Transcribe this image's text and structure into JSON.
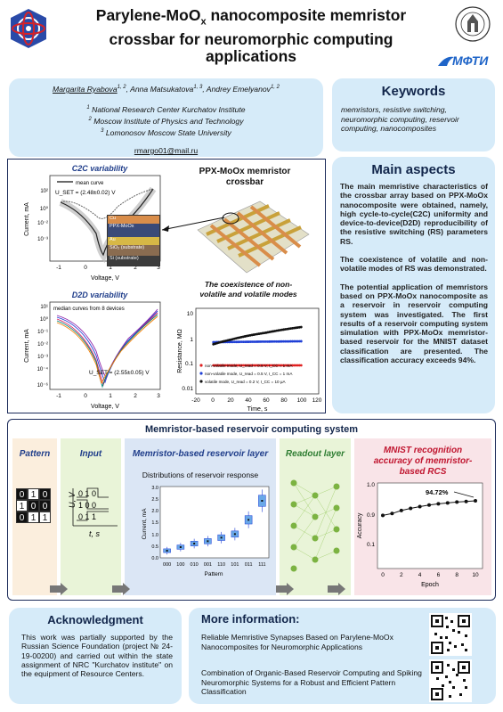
{
  "header": {
    "title_l1": "Parylene-MoO",
    "title_sub": "x",
    "title_l1b": " nanocomposite memristor",
    "title_l2": "crossbar for neuromorphic computing",
    "title_l3": "applications",
    "mipt_logo": "МФТИ"
  },
  "authors": {
    "a1": "Margarita Ryabova",
    "a1_sup": "1, 2",
    "a2": "Anna Matsukatova",
    "a2_sup": "1, 3",
    "a3": "Andrey Emelyanov",
    "a3_sup": "1, 2",
    "aff1": "National Research Center Kurchatov Institute",
    "aff1_n": "1",
    "aff2": "Moscow Institute of Physics and Technology",
    "aff2_n": "2",
    "aff3": "Lomonosov Moscow State University",
    "aff3_n": "3",
    "email": "rmargo01@mail.ru"
  },
  "keywords": {
    "title": "Keywords",
    "text": "memristors, resistive switching, neuromorphic computing, reservoir computing, nanocomposites"
  },
  "main_aspects": {
    "title": "Main aspects",
    "p1": "The main memristive characteristics of the crossbar array based on PPX-MoOx nanocomposite were obtained, namely, high cycle-to-cycle(C2C) uniformity and device-to-device(D2D) reproducibility of the resistive switching (RS) parameters RS.",
    "p2": "The coexistence of volatile and non-volatile modes of RS was demonstrated.",
    "p3": "The potential application of memristors based on PPX-MoOx nanocomposite as a reservoir in reservoir computing system was investigated. The first results of a reservoir computing system simulation with PPX-MoOx memristor-based reservoir for the MNIST dataset classification are presented. The classification accuracy exceeds 94%."
  },
  "figures": {
    "c2c_title": "C2C variability",
    "c2c_legend": "mean curve",
    "c2c_vset": "U_SET = (2.48±0.02) V",
    "d2d_title": "D2D variability",
    "d2d_legend": "median curves from 8 devices",
    "d2d_vset": "U_SET = (2.55±0.05) V",
    "ylabel_current": "Current, mA",
    "xlabel_voltage": "Voltage, V",
    "x_ticks": [
      "-1",
      "0",
      "1",
      "2",
      "3"
    ],
    "c2c_y_ticks": [
      "10²",
      "10¹",
      "10⁰",
      "10⁻¹",
      "10⁻²",
      "10⁻³",
      "10⁻⁴"
    ],
    "d2d_y_ticks": [
      "10¹",
      "10⁰",
      "10⁻¹",
      "10⁻²",
      "10⁻³",
      "10⁻⁴",
      "10⁻⁵",
      "10⁻⁶"
    ],
    "stack_layers": [
      "Cu",
      "PPX-MoOx",
      "Au",
      "SiO₂ (substrate)",
      "Si (substrate)"
    ],
    "crossbar_title_l1": "PPX-MoOx memristor",
    "crossbar_title_l2": "crossbar",
    "coexist_title_l1": "The coexistence of non-",
    "coexist_title_l2": "volatile and volatile modes",
    "res_ylabel": "Resistance, MΩ",
    "res_xlabel": "Time, s",
    "res_x_ticks": [
      "-20",
      "0",
      "20",
      "40",
      "60",
      "80",
      "100",
      "120"
    ],
    "res_y_ticks": [
      "10",
      "1",
      "0.1",
      "0.01"
    ],
    "res_legend": [
      {
        "label": "non-volatile mode, U_read = 0.5 V, I_CC = 1 mA",
        "color": "#e02020"
      },
      {
        "label": "non-volatile mode, U_read = 0.5 V, I_CC = 1 mA",
        "color": "#1f3fd6"
      },
      {
        "label": "volatile mode, U_read = 0.2 V, I_CC = 10 μA",
        "color": "#111111"
      }
    ]
  },
  "reservoir": {
    "title": "Memristor-based reservoir computing system",
    "pattern_title": "Pattern",
    "pattern_rows": [
      [
        "0",
        "1",
        "0"
      ],
      [
        "1",
        "0",
        "0"
      ],
      [
        "0",
        "1",
        "1"
      ]
    ],
    "input_title": "Input",
    "input_ylabel": "U, V",
    "input_xlabel": "t, s",
    "input_rows": [
      "0 1 0",
      "1 0 0",
      "0 1 1"
    ],
    "layer_title": "Memristor-based reservoir layer",
    "dist_title": "Distributions of reservoir response",
    "readout_title": "Readout layer",
    "mnist_title_l1": "MNIST recognition",
    "mnist_title_l2": "accuracy of memristor-",
    "mnist_title_l3": "based RCS",
    "accuracy_label": "94.72%"
  },
  "chart_data": [
    {
      "type": "line",
      "title": "C2C variability",
      "xlabel": "Voltage, V",
      "ylabel": "Current, mA",
      "xlim": [
        -1.2,
        3.2
      ],
      "series": [
        {
          "name": "mean curve",
          "x": [
            -1,
            -0.5,
            0,
            0.5,
            1,
            1.5,
            2,
            2.5,
            3
          ],
          "y": [
            0.5,
            0.05,
            0.0003,
            0.001,
            0.003,
            0.01,
            0.05,
            10,
            20
          ]
        }
      ]
    },
    {
      "type": "line",
      "title": "D2D variability",
      "xlabel": "Voltage, V",
      "ylabel": "Current, mA",
      "xlim": [
        -1.2,
        3.2
      ],
      "series": [
        {
          "name": "median curves from 8 devices",
          "x": [
            -1,
            -0.5,
            0,
            0.5,
            1,
            1.5,
            2,
            2.5,
            3
          ],
          "y": [
            0.2,
            0.02,
            1e-05,
            0.0001,
            0.0005,
            0.002,
            0.01,
            5,
            10
          ]
        }
      ]
    },
    {
      "type": "scatter",
      "xlabel": "Time, s",
      "ylabel": "Resistance, MΩ",
      "xlim": [
        -20,
        120
      ],
      "ylim": [
        0.01,
        10
      ],
      "log_y": true,
      "series": [
        {
          "name": "non-volatile mode, U_read = 0.5 V, I_CC = 1 mA",
          "color": "#e02020",
          "x": [
            0,
            100
          ],
          "y": [
            0.1,
            0.1
          ]
        },
        {
          "name": "non-volatile mode, U_read = 0.5 V, I_CC = 1 mA",
          "color": "#1f3fd6",
          "x": [
            0,
            100
          ],
          "y": [
            0.65,
            0.7
          ]
        },
        {
          "name": "volatile mode, U_read = 0.2 V, I_CC = 10 μA",
          "color": "#111111",
          "x": [
            0,
            20,
            40,
            60,
            80,
            100
          ],
          "y": [
            0.55,
            0.8,
            1.1,
            1.4,
            1.8,
            2.2
          ]
        }
      ]
    },
    {
      "type": "box",
      "title": "Distributions of reservoir response",
      "xlabel": "Pattern",
      "ylabel": "Current, mA",
      "categories": [
        "000",
        "100",
        "010",
        "001",
        "110",
        "101",
        "011",
        "111"
      ],
      "values": [
        0.3,
        0.45,
        0.6,
        0.7,
        0.85,
        1.0,
        1.6,
        2.4
      ],
      "y_ticks": [
        "0.0",
        "0.5",
        "1.0",
        "1.5",
        "2.0",
        "2.5",
        "3.0"
      ],
      "ylim": [
        0,
        3
      ]
    },
    {
      "type": "line",
      "xlabel": "Epoch",
      "ylabel": "Accuracy",
      "categories": [
        0,
        1,
        2,
        3,
        4,
        5,
        6,
        7,
        8,
        9,
        10
      ],
      "values": [
        0.89,
        0.905,
        0.915,
        0.922,
        0.928,
        0.933,
        0.937,
        0.94,
        0.943,
        0.945,
        0.947
      ],
      "ylim": [
        0.1,
        1.0
      ],
      "y_ticks": [
        "0.1",
        "0.9",
        "1.0"
      ],
      "x_ticks": [
        "0",
        "2",
        "4",
        "6",
        "8",
        "10"
      ]
    }
  ],
  "ack": {
    "title": "Acknowledgment",
    "text": "This work was partially supported by the Russian Science Foundation (project № 24-19-00200) and carried out within the state assignment of NRC \"Kurchatov institute\" on the equipment of Resource Centers."
  },
  "more": {
    "title": "More information:",
    "link1": "Reliable Memristive Synapses Based on Parylene-MoOx Nanocomposites for Neuromorphic Applications",
    "link2": "Combination of Organic-Based Reservoir Computing and Spiking Neuromorphic Systems for a Robust and Efficient Pattern Classification"
  },
  "colors": {
    "navy": "#12264b",
    "lightblue": "#d6ebf9",
    "accentred": "#c0152f",
    "blue": "#1f3d8a"
  }
}
